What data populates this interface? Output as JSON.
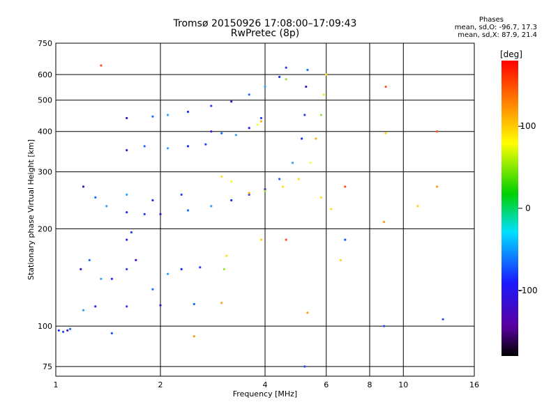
{
  "header": {
    "title_line1": "Tromsø 20150926 17:08:00–17:09:43",
    "title_line2": "RwPretec (8p)",
    "stats_heading": "Phases",
    "stats_o": "mean, sd,O: -96.7, 17.3",
    "stats_x": "mean, sd,X:  87.9, 21.4"
  },
  "chart_data": {
    "type": "scatter",
    "xlabel": "Frequency [MHz]",
    "ylabel": "Stationary phase Virtual Height [km]",
    "x_scale": "log",
    "y_scale": "log",
    "xlim": [
      1,
      16
    ],
    "ylim": [
      70,
      750
    ],
    "x_ticks": [
      1,
      2,
      4,
      6,
      8,
      10,
      16
    ],
    "y_ticks": [
      75,
      100,
      200,
      300,
      400,
      500,
      600,
      750
    ],
    "grid": true,
    "colorbar": {
      "label": "[deg]",
      "range": [
        -180,
        180
      ],
      "ticks": [
        100,
        0,
        -100
      ]
    },
    "colors": {
      "O_trace": "#1a3cff",
      "X_trace": "#ffe01a",
      "grid": "#000000"
    },
    "series": [
      {
        "points": [
          [
            1.02,
            97
          ],
          [
            1.05,
            96
          ],
          [
            1.08,
            97
          ],
          [
            1.1,
            98
          ],
          [
            1.2,
            112
          ],
          [
            1.3,
            115
          ],
          [
            1.6,
            115
          ],
          [
            2.0,
            116
          ],
          [
            2.5,
            117
          ],
          [
            3.0,
            118
          ],
          [
            1.45,
            140
          ],
          [
            1.6,
            150
          ],
          [
            1.7,
            160
          ],
          [
            1.9,
            130
          ],
          [
            2.1,
            145
          ],
          [
            2.3,
            150
          ],
          [
            2.6,
            152
          ],
          [
            1.18,
            150
          ],
          [
            1.25,
            160
          ],
          [
            1.35,
            140
          ],
          [
            1.6,
            185
          ],
          [
            1.65,
            195
          ]
        ]
      },
      {
        "points": [
          [
            1.2,
            270
          ],
          [
            1.3,
            250
          ],
          [
            1.4,
            235
          ],
          [
            1.6,
            225
          ],
          [
            1.8,
            222
          ],
          [
            2.0,
            222
          ],
          [
            2.4,
            228
          ],
          [
            2.8,
            235
          ],
          [
            3.2,
            245
          ],
          [
            3.6,
            255
          ],
          [
            4.0,
            265
          ],
          [
            4.4,
            285
          ],
          [
            4.8,
            320
          ],
          [
            5.1,
            380
          ],
          [
            5.2,
            450
          ],
          [
            5.25,
            550
          ],
          [
            5.3,
            620
          ],
          [
            1.6,
            255
          ],
          [
            1.9,
            245
          ],
          [
            2.3,
            255
          ]
        ]
      },
      {
        "points": [
          [
            1.6,
            350
          ],
          [
            1.8,
            360
          ],
          [
            2.1,
            355
          ],
          [
            2.4,
            360
          ],
          [
            2.7,
            365
          ],
          [
            2.8,
            400
          ],
          [
            3.0,
            395
          ],
          [
            3.3,
            390
          ],
          [
            3.6,
            410
          ],
          [
            3.9,
            440
          ],
          [
            1.6,
            440
          ],
          [
            1.9,
            445
          ],
          [
            2.1,
            450
          ],
          [
            2.4,
            460
          ],
          [
            2.8,
            480
          ],
          [
            3.2,
            495
          ],
          [
            3.6,
            520
          ],
          [
            4.0,
            550
          ],
          [
            4.4,
            590
          ],
          [
            4.6,
            630
          ]
        ]
      },
      {
        "points": [
          [
            3.0,
            118
          ],
          [
            3.05,
            150
          ],
          [
            3.1,
            165
          ],
          [
            3.0,
            290
          ],
          [
            3.2,
            280
          ],
          [
            3.6,
            258
          ],
          [
            4.0,
            262
          ],
          [
            4.5,
            270
          ],
          [
            5.0,
            285
          ],
          [
            5.4,
            320
          ],
          [
            5.6,
            380
          ],
          [
            5.8,
            450
          ],
          [
            5.9,
            520
          ],
          [
            6.0,
            600
          ],
          [
            3.8,
            420
          ],
          [
            3.9,
            430
          ],
          [
            4.6,
            580
          ],
          [
            5.8,
            250
          ],
          [
            6.2,
            230
          ]
        ]
      },
      {
        "points": [
          [
            1.35,
            640
          ],
          [
            1.45,
            95
          ],
          [
            2.5,
            93
          ],
          [
            3.9,
            185
          ],
          [
            4.6,
            185
          ],
          [
            5.2,
            75
          ],
          [
            5.3,
            110
          ],
          [
            6.6,
            160
          ],
          [
            6.8,
            270
          ],
          [
            8.8,
            100
          ],
          [
            8.8,
            210
          ],
          [
            8.9,
            395
          ],
          [
            12.5,
            400
          ],
          [
            13.0,
            105
          ],
          [
            12.5,
            270
          ],
          [
            11.0,
            235
          ],
          [
            8.9,
            550
          ],
          [
            6.8,
            185
          ]
        ]
      }
    ]
  }
}
